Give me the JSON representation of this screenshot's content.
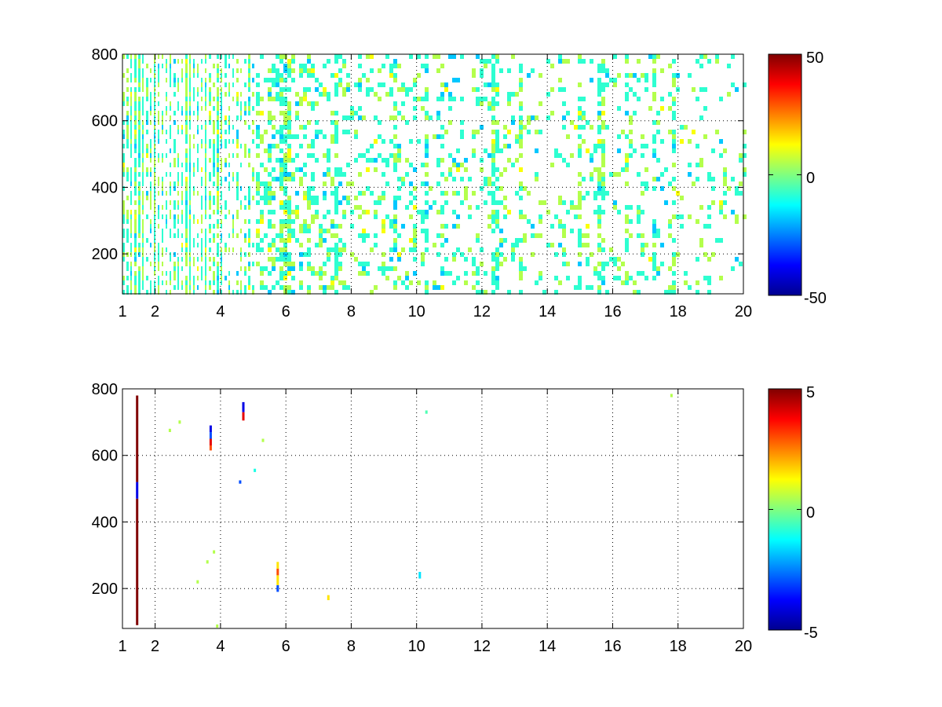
{
  "chart_data": [
    {
      "type": "heatmap",
      "title": "",
      "xlabel": "",
      "ylabel": "",
      "xlim": [
        1,
        20
      ],
      "ylim": [
        80,
        800
      ],
      "x_ticks": [
        "1",
        "2",
        "4",
        "6",
        "8",
        "10",
        "12",
        "14",
        "16",
        "18",
        "20"
      ],
      "y_ticks": [
        "200",
        "400",
        "600",
        "800"
      ],
      "grid": true,
      "colormap": "jet",
      "color_range": [
        -50,
        50
      ],
      "colorbar_ticks": [
        "50",
        "0",
        "-50"
      ],
      "density_profile": [
        {
          "x": 1,
          "fill": 0.6
        },
        {
          "x": 2,
          "fill": 0.55
        },
        {
          "x": 4,
          "fill": 0.45
        },
        {
          "x": 6,
          "fill": 0.3
        },
        {
          "x": 8,
          "fill": 0.2
        },
        {
          "x": 12,
          "fill": 0.17
        },
        {
          "x": 20,
          "fill": 0.12
        }
      ],
      "value_mix": [
        {
          "value": -8,
          "share": 0.55
        },
        {
          "value": 5,
          "share": 0.35
        },
        {
          "value": -18,
          "share": 0.07
        },
        {
          "value": 12,
          "share": 0.03
        }
      ],
      "dense_columns": [
        1.25,
        1.4,
        1.55,
        2.0,
        3.0,
        3.55,
        3.85,
        4.0,
        4.85,
        5.8,
        6.0,
        7.5,
        9.25,
        10.25,
        12.35,
        13.1,
        14.95,
        15.6,
        16.35,
        17.2,
        17.85
      ]
    },
    {
      "type": "heatmap",
      "title": "",
      "xlabel": "",
      "ylabel": "",
      "xlim": [
        1,
        20
      ],
      "ylim": [
        80,
        800
      ],
      "x_ticks": [
        "1",
        "2",
        "4",
        "6",
        "8",
        "10",
        "12",
        "14",
        "16",
        "18",
        "20"
      ],
      "y_ticks": [
        "200",
        "400",
        "600",
        "800"
      ],
      "grid": true,
      "colormap": "jet",
      "color_range": [
        -5,
        5
      ],
      "colorbar_ticks": [
        "5",
        "0",
        "-5"
      ],
      "cells": [
        {
          "x": 1.45,
          "y0": 90,
          "y1": 470,
          "value": 5
        },
        {
          "x": 1.45,
          "y0": 470,
          "y1": 520,
          "value": -4
        },
        {
          "x": 1.45,
          "y0": 520,
          "y1": 780,
          "value": 5
        },
        {
          "x": 3.7,
          "y0": 615,
          "y1": 630,
          "value": 3
        },
        {
          "x": 3.7,
          "y0": 630,
          "y1": 650,
          "value": 4
        },
        {
          "x": 3.7,
          "y0": 650,
          "y1": 670,
          "value": -3
        },
        {
          "x": 3.7,
          "y0": 670,
          "y1": 690,
          "value": -4
        },
        {
          "x": 4.7,
          "y0": 705,
          "y1": 730,
          "value": 4
        },
        {
          "x": 4.7,
          "y0": 730,
          "y1": 760,
          "value": -4
        },
        {
          "x": 5.75,
          "y0": 190,
          "y1": 210,
          "value": -3
        },
        {
          "x": 5.75,
          "y0": 210,
          "y1": 240,
          "value": 1.5
        },
        {
          "x": 5.75,
          "y0": 240,
          "y1": 260,
          "value": 3
        },
        {
          "x": 5.75,
          "y0": 260,
          "y1": 280,
          "value": 1.5
        },
        {
          "x": 7.3,
          "y0": 165,
          "y1": 180,
          "value": 1.5
        },
        {
          "x": 10.1,
          "y0": 230,
          "y1": 250,
          "value": -1.5
        },
        {
          "x": 4.6,
          "y0": 515,
          "y1": 525,
          "value": -3
        },
        {
          "x": 5.05,
          "y0": 550,
          "y1": 560,
          "value": -1
        },
        {
          "x": 2.45,
          "y0": 670,
          "y1": 680,
          "value": 0.5
        },
        {
          "x": 2.75,
          "y0": 695,
          "y1": 705,
          "value": 0.5
        },
        {
          "x": 3.3,
          "y0": 215,
          "y1": 225,
          "value": 0.5
        },
        {
          "x": 3.6,
          "y0": 275,
          "y1": 285,
          "value": 0.5
        },
        {
          "x": 3.8,
          "y0": 305,
          "y1": 315,
          "value": 0.5
        },
        {
          "x": 5.3,
          "y0": 640,
          "y1": 650,
          "value": 0.5
        },
        {
          "x": 10.3,
          "y0": 725,
          "y1": 735,
          "value": -0.5
        },
        {
          "x": 17.8,
          "y0": 775,
          "y1": 785,
          "value": 0.5
        },
        {
          "x": 3.9,
          "y0": 82,
          "y1": 92,
          "value": 0.5
        }
      ]
    }
  ]
}
